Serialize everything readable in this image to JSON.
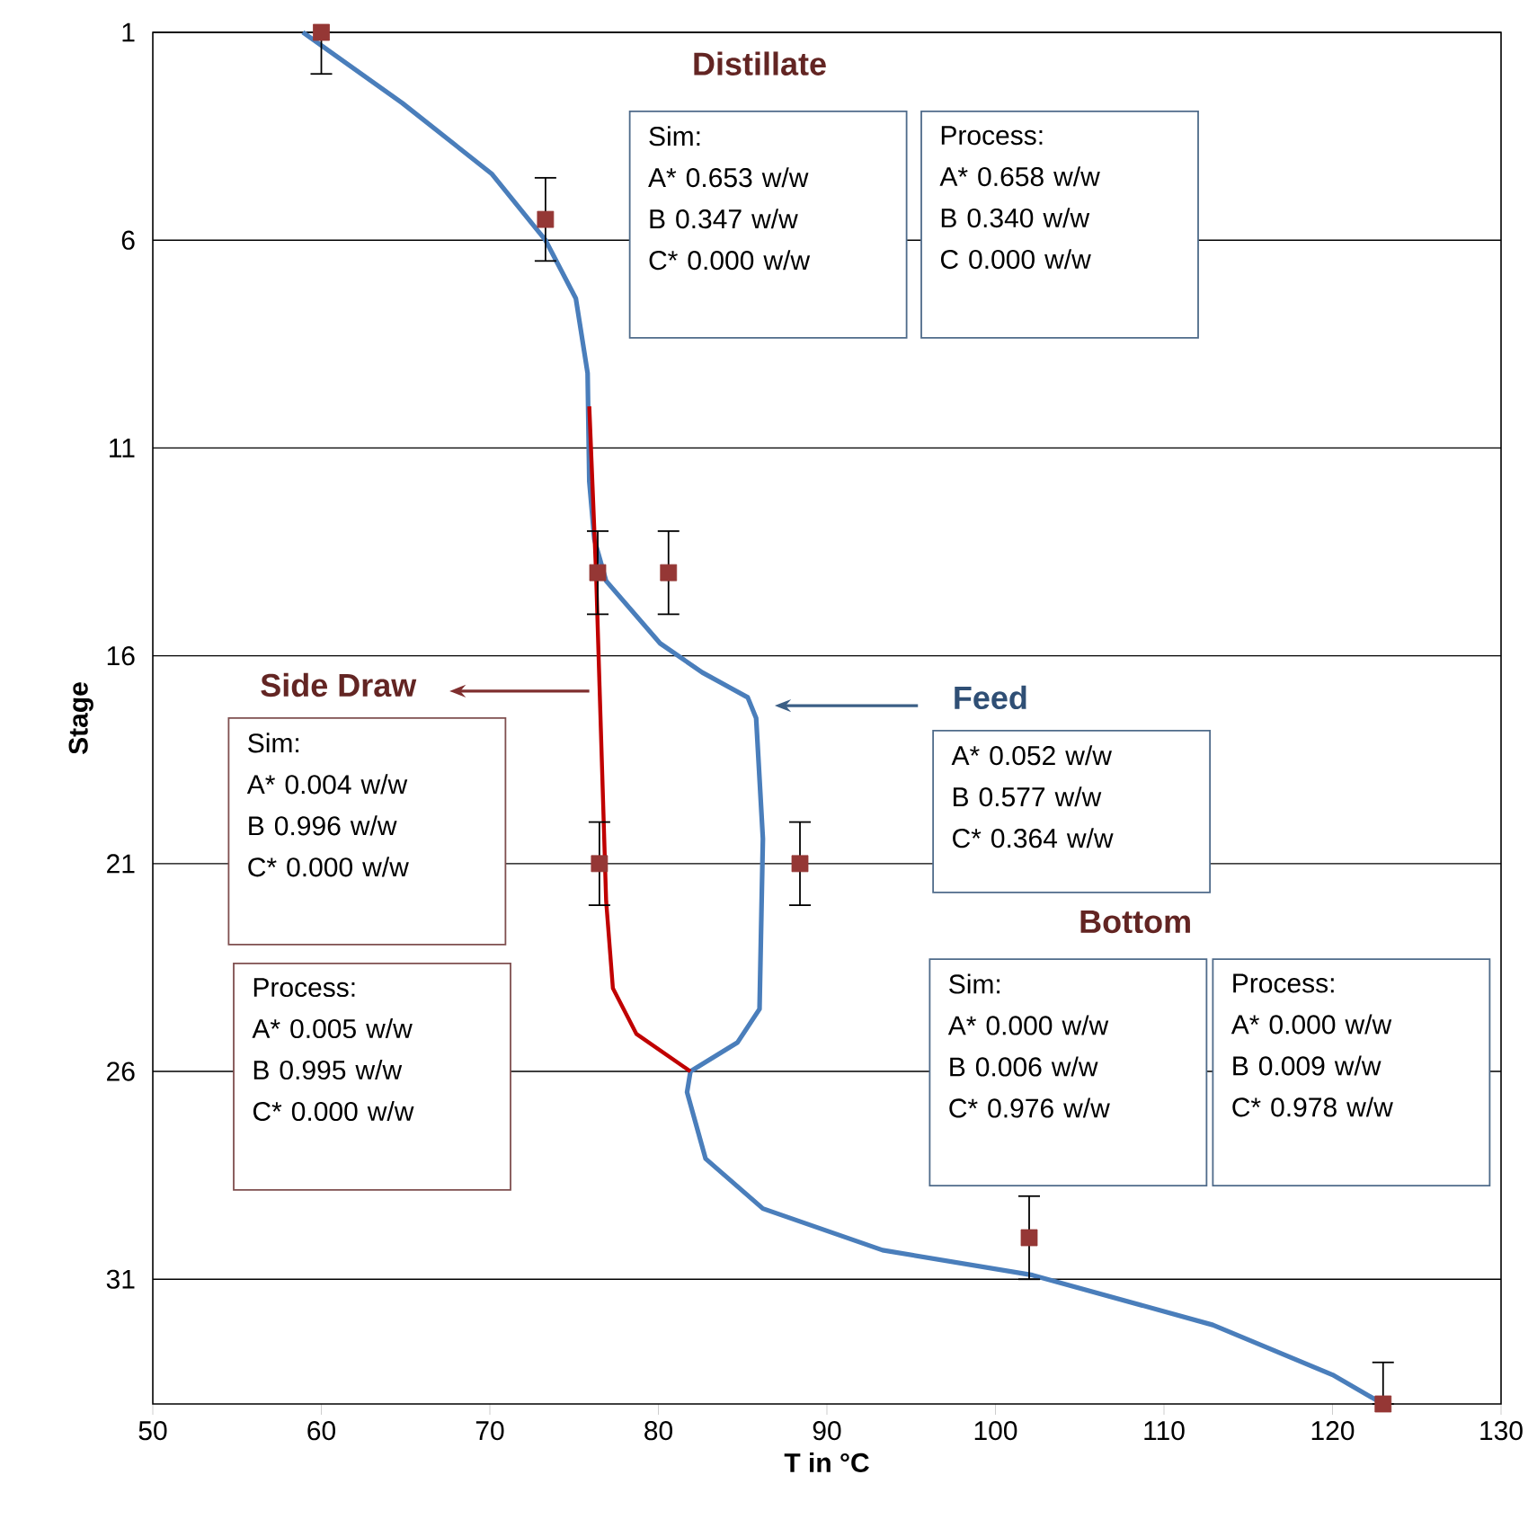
{
  "chart_data": {
    "type": "line",
    "xlabel": "T in °C",
    "ylabel": "Stage",
    "xlim": [
      50,
      130
    ],
    "xticks": [
      50,
      60,
      70,
      80,
      90,
      100,
      110,
      120,
      130
    ],
    "ylim": [
      34,
      1
    ],
    "yticks": [
      1,
      6,
      11,
      16,
      21,
      26,
      31
    ],
    "grid": "y",
    "series": [
      {
        "type": "line",
        "color": "#4a7ebb",
        "x": [
          58.9,
          64.8,
          70.1,
          73.3,
          75.1,
          75.8,
          75.9,
          76.2,
          76.9,
          80.1,
          82.6,
          85.3,
          85.8,
          86.2,
          86.0,
          84.7,
          81.9,
          81.7,
          82.8,
          86.2,
          93.3,
          102.2,
          112.9,
          120.0,
          123.0
        ],
        "values": [
          1,
          2.7,
          4.4,
          6.0,
          7.4,
          9.2,
          11.8,
          13.2,
          14.2,
          15.7,
          16.4,
          17.0,
          17.5,
          20.4,
          24.5,
          25.3,
          26.0,
          26.5,
          28.1,
          29.3,
          30.3,
          30.9,
          32.1,
          33.3,
          34
        ]
      },
      {
        "type": "line",
        "color": "#c00000",
        "x": [
          75.9,
          76.3,
          76.9,
          77.3,
          78.7,
          81.9
        ],
        "values": [
          10,
          14,
          21.9,
          24.0,
          25.1,
          26.0
        ]
      },
      {
        "type": "scatter",
        "color": "#953735",
        "marker": "square",
        "x": [
          60,
          73.3,
          76.4,
          80.6,
          76.5,
          88.4,
          102,
          123
        ],
        "values": [
          1,
          5.5,
          14,
          14,
          21,
          21,
          30,
          34
        ],
        "errors": [
          [
            1,
            2
          ],
          1,
          1,
          1,
          1,
          1,
          1,
          [
            33,
            34
          ]
        ]
      }
    ],
    "annotations": [
      "Distillate",
      "Sim:",
      "A* 0.653 w/w",
      "B 0.347 w/w",
      "C* 0.000 w/w",
      "Process:",
      "A* 0.658 w/w",
      "B 0.340 w/w",
      "C 0.000 w/w",
      "Side Draw",
      "Sim:",
      "A* 0.004 w/w",
      "B 0.996 w/w",
      "C* 0.000 w/w",
      "Process:",
      "A* 0.005 w/w",
      "B 0.995 w/w",
      "C* 0.000 w/w",
      "Feed",
      "A* 0.052 w/w",
      "B 0.577 w/w",
      "C* 0.364 w/w",
      "Bottom",
      "Sim:",
      "A* 0.000 w/w",
      "B 0.006 w/w",
      "C* 0.976 w/w",
      "Process:",
      "A* 0.000 w/w",
      "B 0.009 w/w",
      "C* 0.978 w/w"
    ]
  }
}
